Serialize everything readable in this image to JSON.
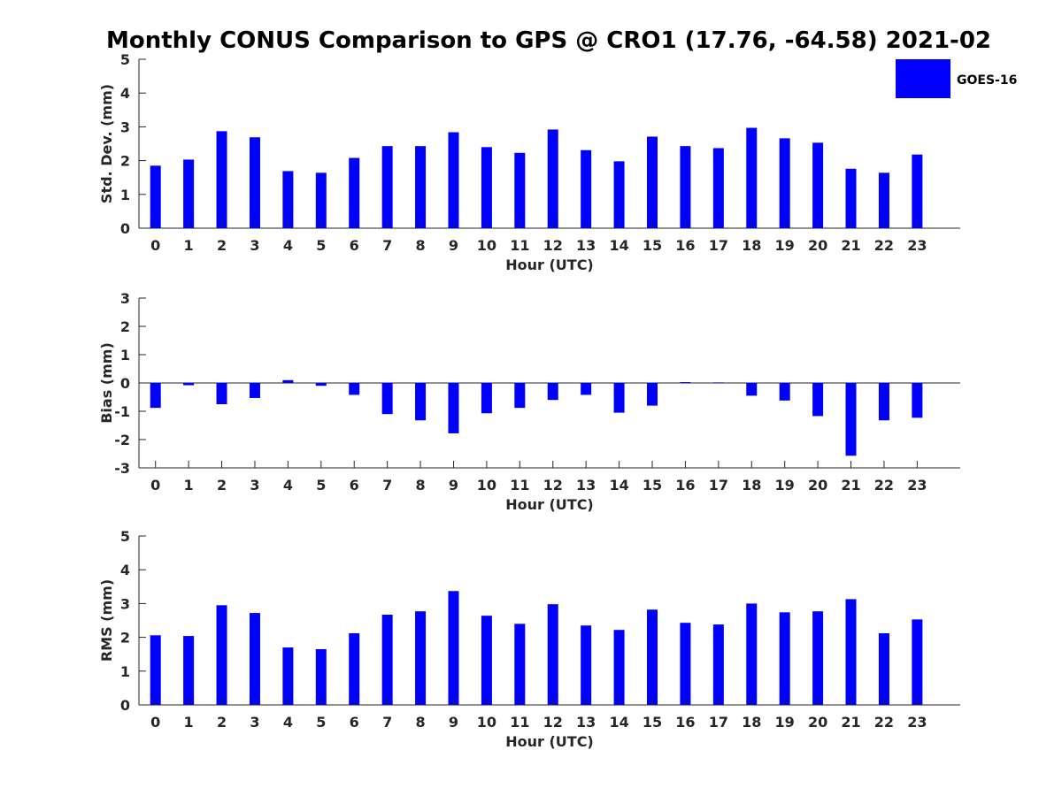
{
  "figure": {
    "title": "Monthly CONUS Comparison to GPS @ CRO1 (17.76, -64.58) 2021-02",
    "legend": {
      "label": "GOES-16",
      "color": "#0000ff",
      "placement": "top-right"
    },
    "bar_color": "#0000ff"
  },
  "chart_data": [
    {
      "type": "bar",
      "categories": [
        "0",
        "1",
        "2",
        "3",
        "4",
        "5",
        "6",
        "7",
        "8",
        "9",
        "10",
        "11",
        "12",
        "13",
        "14",
        "15",
        "16",
        "17",
        "18",
        "19",
        "20",
        "21",
        "22",
        "23"
      ],
      "series": [
        {
          "name": "GOES-16",
          "values": [
            1.85,
            2.03,
            2.87,
            2.69,
            1.69,
            1.64,
            2.08,
            2.43,
            2.43,
            2.84,
            2.4,
            2.23,
            2.92,
            2.31,
            1.98,
            2.71,
            2.43,
            2.37,
            2.97,
            2.66,
            2.53,
            1.76,
            1.64,
            2.18
          ]
        }
      ],
      "xlabel": "Hour (UTC)",
      "ylabel": "Std. Dev. (mm)",
      "ylim": [
        0,
        5
      ],
      "yticks": [
        "0",
        "1",
        "2",
        "3",
        "4",
        "5"
      ],
      "grid": false
    },
    {
      "type": "bar",
      "categories": [
        "0",
        "1",
        "2",
        "3",
        "4",
        "5",
        "6",
        "7",
        "8",
        "9",
        "10",
        "11",
        "12",
        "13",
        "14",
        "15",
        "16",
        "17",
        "18",
        "19",
        "20",
        "21",
        "22",
        "23"
      ],
      "series": [
        {
          "name": "GOES-16",
          "values": [
            -0.88,
            -0.08,
            -0.75,
            -0.53,
            0.1,
            -0.1,
            -0.42,
            -1.1,
            -1.32,
            -1.78,
            -1.07,
            -0.88,
            -0.6,
            -0.42,
            -1.05,
            -0.8,
            0.03,
            0.02,
            -0.45,
            -0.62,
            -1.17,
            -2.57,
            -1.32,
            -1.23
          ]
        }
      ],
      "xlabel": "Hour (UTC)",
      "ylabel": "Bias (mm)",
      "ylim": [
        -3,
        3
      ],
      "yticks": [
        "-3",
        "-2",
        "-1",
        "0",
        "1",
        "2",
        "3"
      ],
      "grid": false
    },
    {
      "type": "bar",
      "categories": [
        "0",
        "1",
        "2",
        "3",
        "4",
        "5",
        "6",
        "7",
        "8",
        "9",
        "10",
        "11",
        "12",
        "13",
        "14",
        "15",
        "16",
        "17",
        "18",
        "19",
        "20",
        "21",
        "22",
        "23"
      ],
      "series": [
        {
          "name": "GOES-16",
          "values": [
            2.06,
            2.04,
            2.95,
            2.72,
            1.7,
            1.65,
            2.12,
            2.67,
            2.77,
            3.37,
            2.64,
            2.4,
            2.98,
            2.35,
            2.22,
            2.82,
            2.43,
            2.38,
            3.0,
            2.74,
            2.77,
            3.13,
            2.12,
            2.53
          ]
        }
      ],
      "xlabel": "Hour (UTC)",
      "ylabel": "RMS (mm)",
      "ylim": [
        0,
        5
      ],
      "yticks": [
        "0",
        "1",
        "2",
        "3",
        "4",
        "5"
      ],
      "grid": false
    }
  ]
}
